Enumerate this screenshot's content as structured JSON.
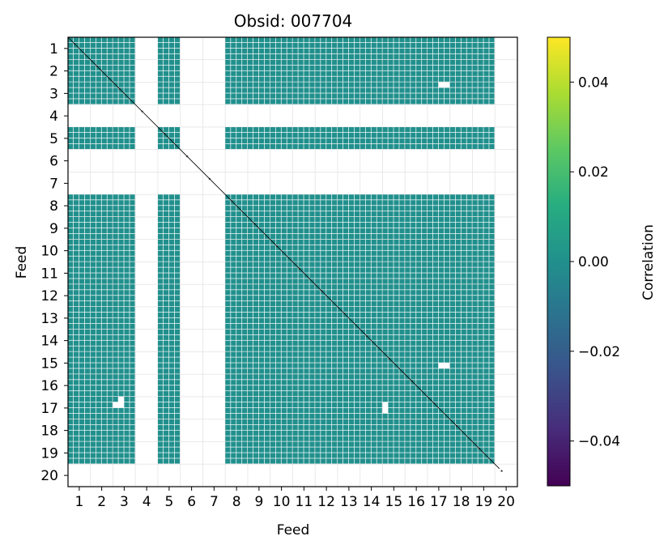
{
  "chart_data": {
    "type": "heatmap",
    "title": "Obsid: 007704",
    "xlabel": "Feed",
    "ylabel": "Feed",
    "categories": [
      "1",
      "2",
      "3",
      "4",
      "5",
      "6",
      "7",
      "8",
      "9",
      "10",
      "11",
      "12",
      "13",
      "14",
      "15",
      "16",
      "17",
      "18",
      "19",
      "20"
    ],
    "colorbar": {
      "label": "Correlation",
      "range": [
        -0.05,
        0.05
      ],
      "ticks": [
        0.04,
        0.02,
        0.0,
        -0.02,
        -0.04
      ],
      "tick_labels": [
        "0.04",
        "0.02",
        "0.00",
        "−0.02",
        "−0.04"
      ],
      "colormap": "viridis"
    },
    "cell_value": 0.0,
    "active_feeds": [
      1,
      2,
      3,
      5,
      8,
      9,
      10,
      11,
      12,
      13,
      14,
      15,
      16,
      17,
      18,
      19
    ],
    "inactive_feeds": [
      4,
      6,
      7,
      20
    ],
    "blocks_per_feed": 4,
    "masked_blocks": [
      {
        "row_feed": 17,
        "row_block": 2,
        "col_feed": 3,
        "col_block": 1
      },
      {
        "row_feed": 17,
        "row_block": 2,
        "col_feed": 3,
        "col_block": 2
      },
      {
        "row_feed": 17,
        "row_block": 1,
        "col_feed": 3,
        "col_block": 2
      },
      {
        "row_feed": 3,
        "row_block": 1,
        "col_feed": 17,
        "col_block": 3
      },
      {
        "row_feed": 3,
        "row_block": 1,
        "col_feed": 17,
        "col_block": 4
      },
      {
        "row_feed": 15,
        "row_block": 3,
        "col_feed": 17,
        "col_block": 3
      },
      {
        "row_feed": 15,
        "row_block": 3,
        "col_feed": 17,
        "col_block": 4
      },
      {
        "row_feed": 17,
        "row_block": 2,
        "col_feed": 15,
        "col_block": 1
      },
      {
        "row_feed": 17,
        "row_block": 3,
        "col_feed": 15,
        "col_block": 1
      }
    ],
    "grid": true
  }
}
